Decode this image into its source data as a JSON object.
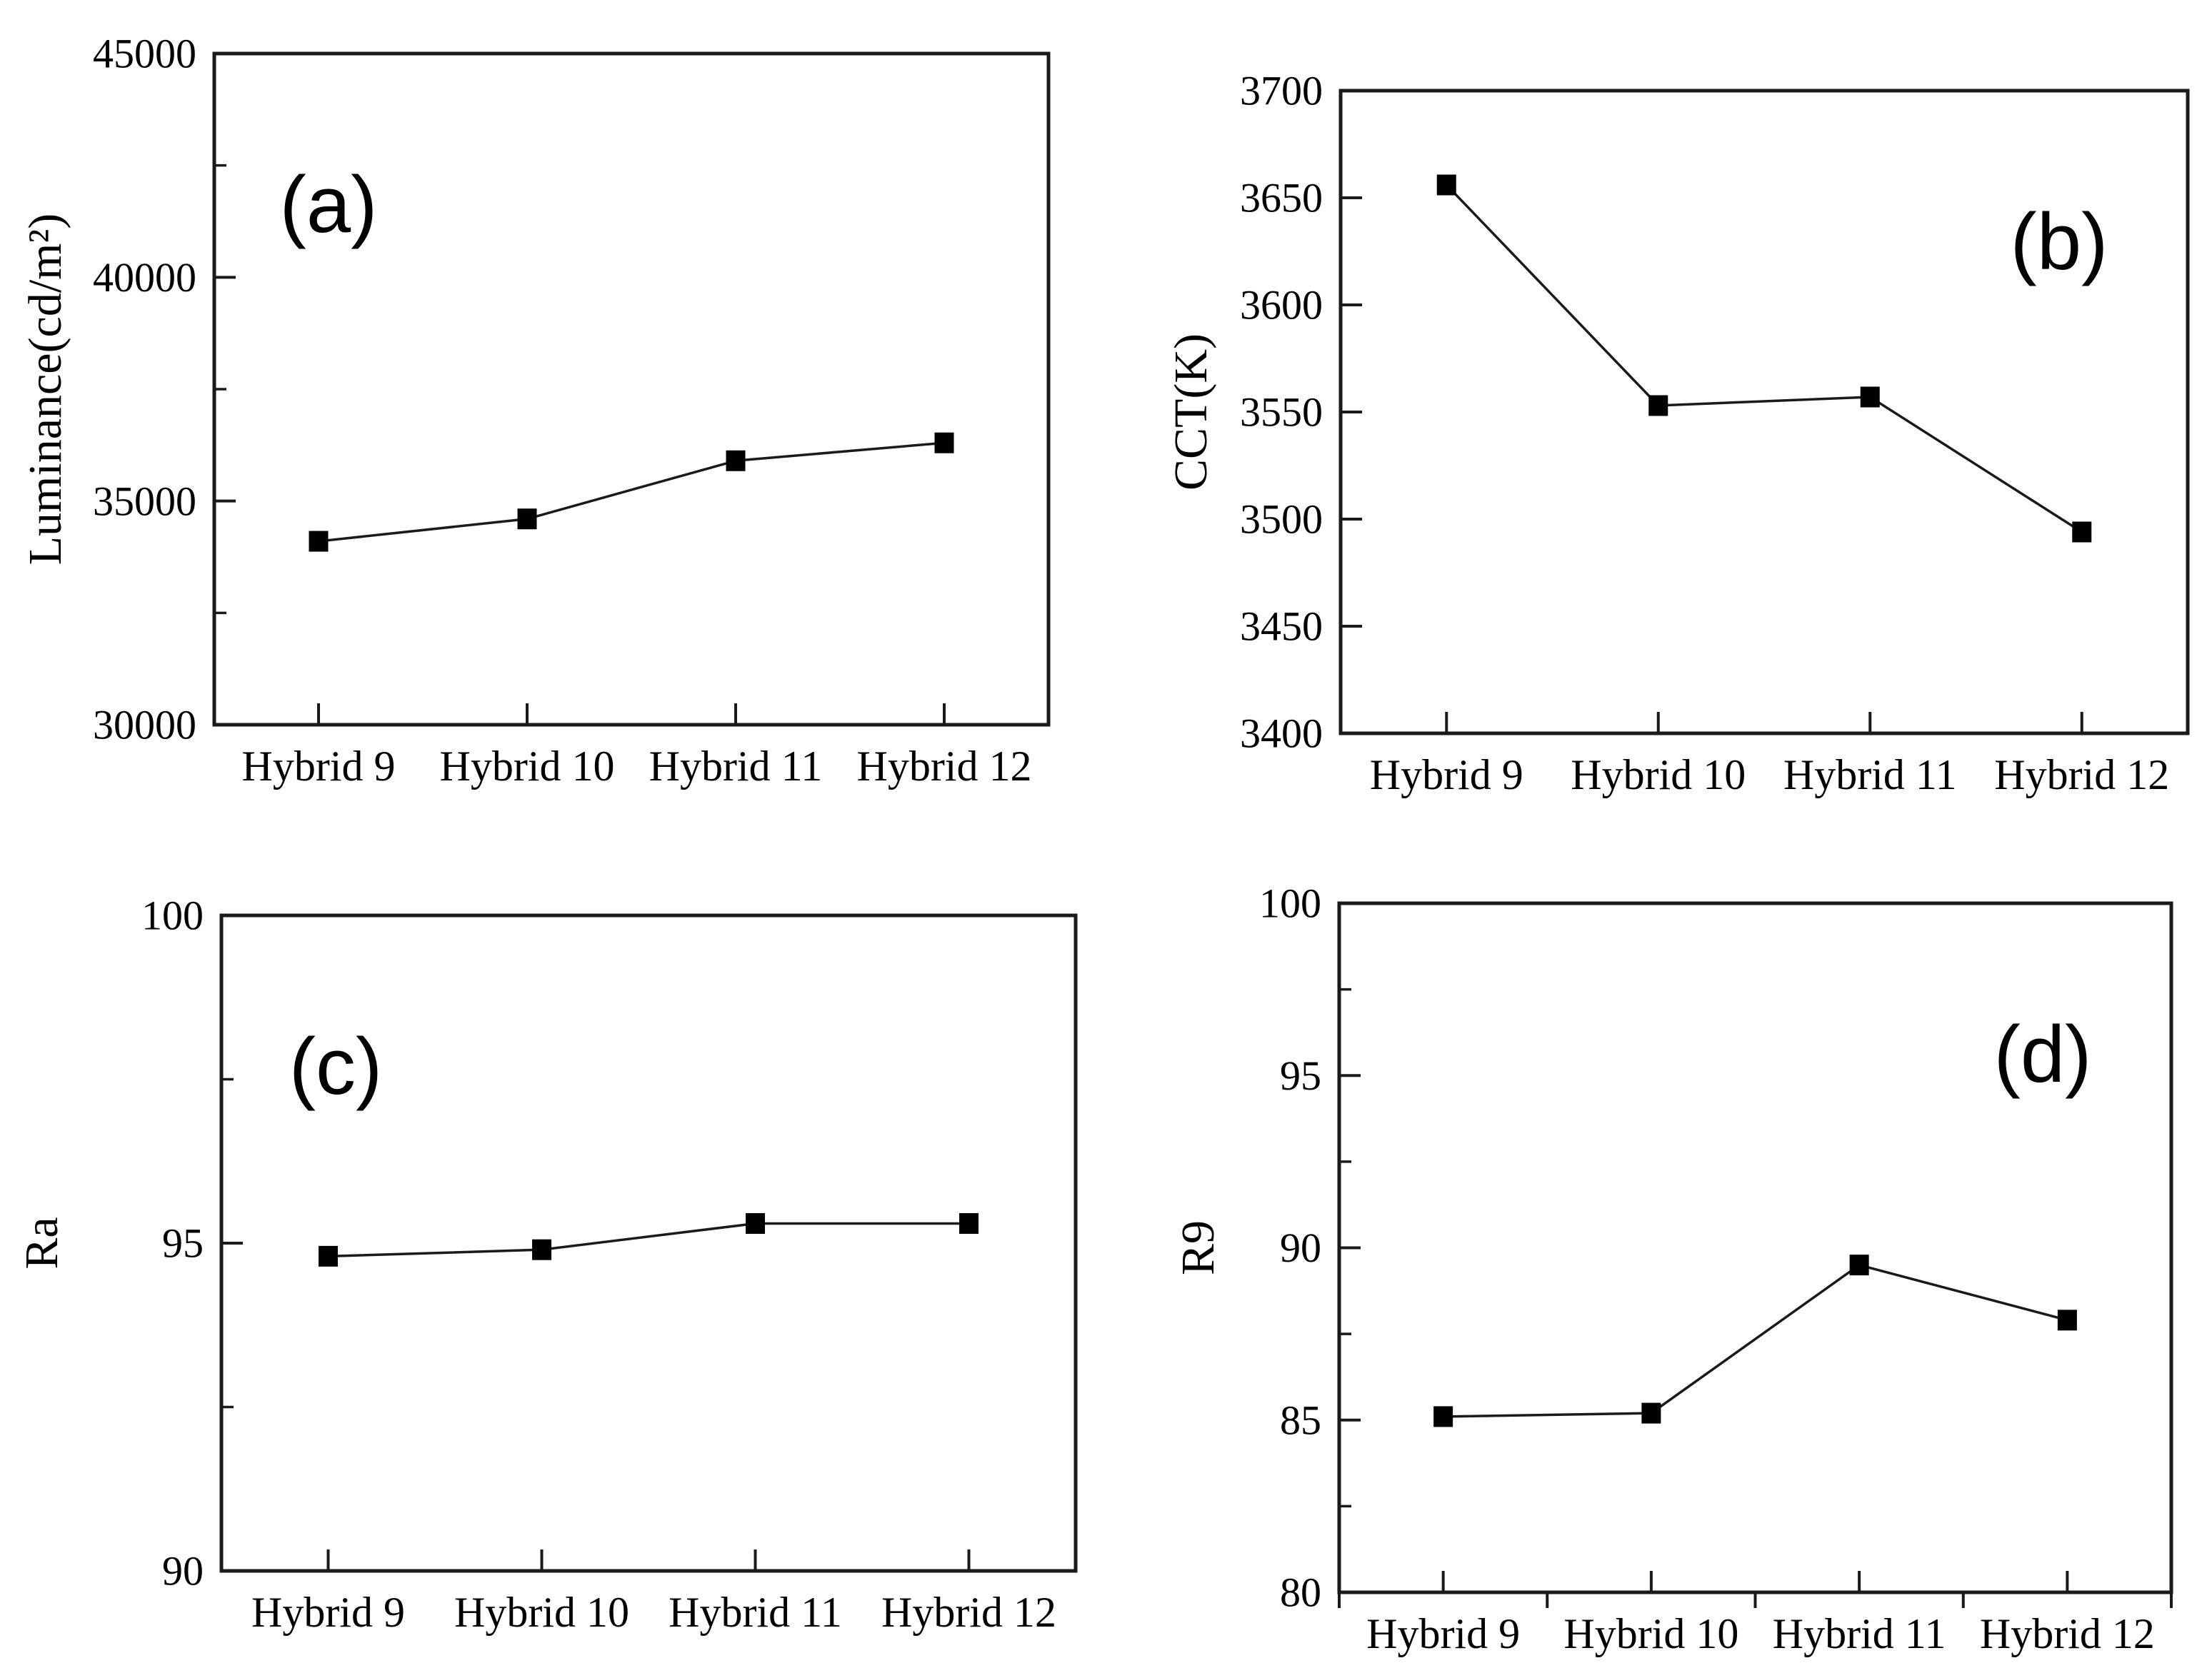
{
  "figure": {
    "background": "#ffffff",
    "axis_color": "#1a1a1a",
    "text_color": "#000000",
    "marker_color": "#000000"
  },
  "chart_data": [
    {
      "panel": "(a)",
      "type": "line",
      "title": "",
      "xlabel": "",
      "ylabel": "Luminance(cd/m²)",
      "categories": [
        "Hybrid 9",
        "Hybrid 10",
        "Hybrid 11",
        "Hybrid 12"
      ],
      "values": [
        34100,
        34600,
        35900,
        36300
      ],
      "ylim": [
        30000,
        45000
      ],
      "yticks": [
        30000,
        35000,
        40000,
        45000
      ],
      "ytick_labels": [
        "30000",
        "35000",
        "40000",
        "45000"
      ],
      "yminor": [
        32500,
        37500,
        42500
      ],
      "xminor_outside": false,
      "label_corner": "top-left",
      "marker": "filled-square",
      "line_color": "#1a1a1a",
      "grid": false,
      "legend": "none"
    },
    {
      "panel": "(b)",
      "type": "line",
      "title": "",
      "xlabel": "",
      "ylabel": "CCT(K)",
      "categories": [
        "Hybrid 9",
        "Hybrid 10",
        "Hybrid 11",
        "Hybrid 12"
      ],
      "values": [
        3656,
        3553,
        3557,
        3494
      ],
      "ylim": [
        3400,
        3700
      ],
      "yticks": [
        3400,
        3450,
        3500,
        3550,
        3600,
        3650,
        3700
      ],
      "ytick_labels": [
        "3400",
        "3450",
        "3500",
        "3550",
        "3600",
        "3650",
        "3700"
      ],
      "yminor": [],
      "xminor_outside": false,
      "label_corner": "top-right",
      "marker": "filled-square",
      "line_color": "#1a1a1a",
      "grid": false,
      "legend": "none"
    },
    {
      "panel": "(c)",
      "type": "line",
      "title": "",
      "xlabel": "",
      "ylabel": "Ra",
      "categories": [
        "Hybrid 9",
        "Hybrid 10",
        "Hybrid 11",
        "Hybrid 12"
      ],
      "values": [
        94.8,
        94.9,
        95.3,
        95.3
      ],
      "ylim": [
        90,
        100
      ],
      "yticks": [
        90,
        95,
        100
      ],
      "ytick_labels": [
        "90",
        "95",
        "100"
      ],
      "yminor": [
        92.5,
        97.5
      ],
      "xminor_outside": false,
      "label_corner": "top-left",
      "marker": "filled-square",
      "line_color": "#1a1a1a",
      "grid": false,
      "legend": "none"
    },
    {
      "panel": "(d)",
      "type": "line",
      "title": "",
      "xlabel": "",
      "ylabel": "R9",
      "categories": [
        "Hybrid 9",
        "Hybrid 10",
        "Hybrid 11",
        "Hybrid 12"
      ],
      "values": [
        85.1,
        85.2,
        89.5,
        87.9
      ],
      "ylim": [
        80,
        100
      ],
      "yticks": [
        80,
        85,
        90,
        95,
        100
      ],
      "ytick_labels": [
        "80",
        "85",
        "90",
        "95",
        "100"
      ],
      "yminor": [
        82.5,
        87.5,
        92.5,
        97.5
      ],
      "xminor_outside": true,
      "label_corner": "top-right",
      "marker": "filled-square",
      "line_color": "#1a1a1a",
      "grid": false,
      "legend": "none"
    }
  ]
}
